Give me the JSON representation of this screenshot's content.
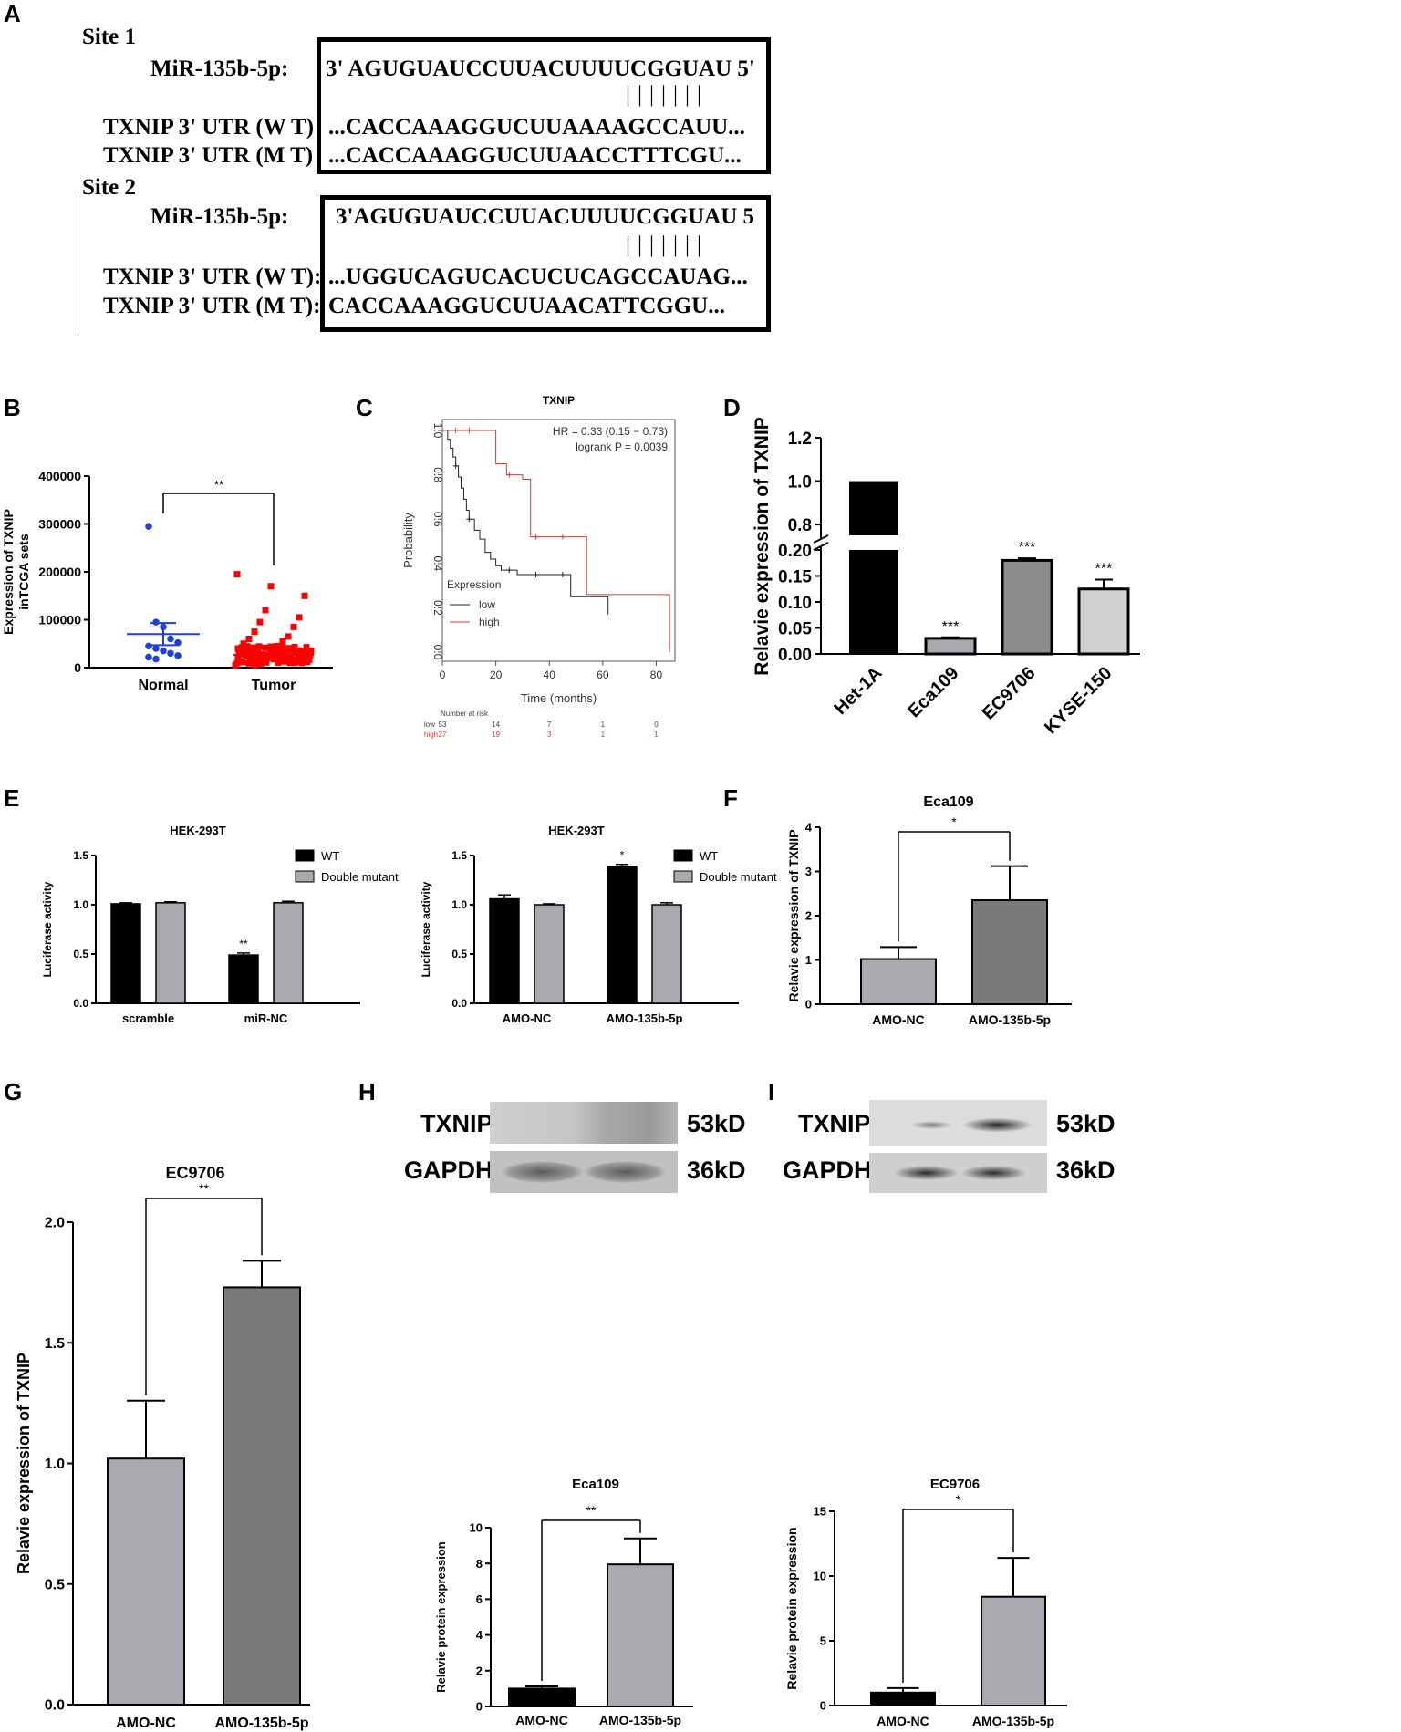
{
  "panel_labels": {
    "A": "A",
    "B": "B",
    "C": "C",
    "D": "D",
    "E": "E",
    "F": "F",
    "G": "G",
    "H": "H",
    "I": "I"
  },
  "panelA": {
    "site1": {
      "title": "Site 1",
      "mir_label": "MiR-135b-5p:",
      "mir_seq": "3' AGUGUAUCCUUACUUUUCGGUAU 5'",
      "pairs": "|||||||",
      "wt_label": "TXNIP 3' UTR (W T)",
      "wt_seq": "...CACCAAAGGUCUUAAAAGCCAUU...",
      "mt_label": "TXNIP 3' UTR (M T)",
      "mt_seq": "...CACCAAAGGUCUUAACCTTTCGU..."
    },
    "site2": {
      "title": "Site 2",
      "mir_label": "MiR-135b-5p:",
      "mir_seq": "3'AGUGUAUCCUUACUUUUCGGUAU 5",
      "pairs": "|||||||",
      "wt_label": "TXNIP 3' UTR (W T):",
      "wt_seq": "...UGGUCAGUCACUCUCAGCCAUAG...",
      "mt_label": "TXNIP 3' UTR (M T):",
      "mt_seq": " CACCAAAGGUCUUAACATTCGGU..."
    }
  },
  "panelH": {
    "protein1": "TXNIP",
    "kd1": "53kD",
    "protein2": "GAPDH",
    "kd2": "36kD"
  },
  "panelI": {
    "protein1": "TXNIP",
    "kd1": "53kD",
    "protein2": "GAPDH",
    "kd2": "36kD"
  },
  "colors": {
    "blue": "#1f3fd6",
    "red": "#ff0000",
    "black": "#000000",
    "dark_gray": "#7a7a7a",
    "mid_gray": "#8c8c8c",
    "light_gray": "#a9a9b0",
    "pale_gray": "#d0d0d0"
  },
  "chart_data": [
    {
      "id": "B",
      "type": "scatter",
      "title": "",
      "ylabel": "Expression of TXNIP inTCGA sets",
      "ylabel_lines": [
        "Expression of TXNIP",
        "inTCGA sets"
      ],
      "categories": [
        "Normal",
        "Tumor"
      ],
      "yticks": [
        "0",
        "100000",
        "200000",
        "300000",
        "400000"
      ],
      "ylim": [
        0,
        400000
      ],
      "significance": "**",
      "series": [
        {
          "name": "Normal",
          "mean": 70000,
          "sem_upper": 93000,
          "sem_lower": 47000,
          "points": [
            295000,
            95000,
            85000,
            60000,
            52000,
            45000,
            40000,
            35000,
            30000,
            25000,
            22000,
            18000
          ]
        },
        {
          "name": "Tumor",
          "mean": 27000,
          "sem_upper": 31000,
          "sem_lower": 23000,
          "points": [
            195000,
            170000,
            150000,
            120000,
            105000,
            95000,
            85000,
            75000,
            65000,
            60000,
            55000,
            50000,
            45000,
            40000,
            35000,
            30000,
            25000,
            20000,
            15000,
            10000,
            5000
          ]
        }
      ]
    },
    {
      "id": "C",
      "type": "line",
      "title": "TXNIP",
      "xlabel": "Time (months)",
      "ylabel": "Probability",
      "xticks": [
        "0",
        "20",
        "40",
        "60",
        "80"
      ],
      "yticks": [
        "0.0",
        "0.2",
        "0.4",
        "0.6",
        "0.8",
        "1.0"
      ],
      "xlim": [
        0,
        87
      ],
      "ylim": [
        0,
        1.02
      ],
      "annotation_lines": [
        "HR = 0.33 (0.15 − 0.73)",
        "logrank P = 0.0039"
      ],
      "legend_title": "Expression",
      "risk_title": "Number at risk",
      "risk_table": [
        {
          "group": "low",
          "values": [
            "53",
            "14",
            "7",
            "1",
            "0"
          ]
        },
        {
          "group": "high",
          "values": [
            "27",
            "19",
            "3",
            "1",
            "1"
          ]
        }
      ],
      "series": [
        {
          "name": "low",
          "x": [
            0,
            2,
            3,
            4,
            5,
            6,
            7,
            8,
            9,
            10,
            12,
            14,
            16,
            18,
            20,
            22,
            28,
            40,
            48,
            60,
            62
          ],
          "y": [
            1.0,
            0.96,
            0.92,
            0.88,
            0.84,
            0.79,
            0.74,
            0.69,
            0.64,
            0.6,
            0.55,
            0.51,
            0.45,
            0.42,
            0.39,
            0.37,
            0.35,
            0.35,
            0.25,
            0.25,
            0.17
          ]
        },
        {
          "name": "high",
          "x": [
            0,
            18,
            20,
            24,
            30,
            33,
            48,
            54,
            60,
            85,
            85
          ],
          "y": [
            1.0,
            1.0,
            0.85,
            0.8,
            0.78,
            0.52,
            0.52,
            0.26,
            0.26,
            0.26,
            0.0
          ]
        }
      ]
    },
    {
      "id": "D",
      "type": "bar",
      "ylabel": "Relavie expression of TXNIP",
      "categories": [
        "Het-1A",
        "Eca109",
        "EC9706",
        "KYSE-150"
      ],
      "values": [
        1.0,
        0.03,
        0.18,
        0.125
      ],
      "errors": [
        0,
        0.002,
        0.004,
        0.018
      ],
      "significance": [
        "",
        "***",
        "***",
        "***"
      ],
      "yticks_upper": [
        "0.8",
        "1.0",
        "1.2"
      ],
      "yticks_lower": [
        "0.00",
        "0.05",
        "0.10",
        "0.15",
        "0.20"
      ],
      "broken_axis": {
        "lower": [
          0,
          0.2
        ],
        "upper": [
          0.75,
          1.2
        ]
      }
    },
    {
      "id": "E1",
      "type": "bar",
      "title": "HEK-293T",
      "ylabel": "Luciferase activity",
      "categories": [
        "scramble",
        "miR-NC"
      ],
      "yticks": [
        "0.0",
        "0.5",
        "1.0",
        "1.5"
      ],
      "ylim": [
        0,
        1.5
      ],
      "legend": [
        "WT",
        "Double mutant"
      ],
      "series": [
        {
          "name": "WT",
          "values": [
            1.01,
            0.49
          ],
          "errors": [
            0.01,
            0.02
          ],
          "significance": [
            "",
            "**"
          ]
        },
        {
          "name": "Double mutant",
          "values": [
            1.02,
            1.02
          ],
          "errors": [
            0.01,
            0.015
          ],
          "significance": [
            "",
            ""
          ]
        }
      ]
    },
    {
      "id": "E2",
      "type": "bar",
      "title": "HEK-293T",
      "ylabel": "Luciferase activity",
      "categories": [
        "AMO-NC",
        "AMO-135b-5p"
      ],
      "yticks": [
        "0.0",
        "0.5",
        "1.0",
        "1.5"
      ],
      "ylim": [
        0,
        1.5
      ],
      "legend": [
        "WT",
        "Double mutant"
      ],
      "series": [
        {
          "name": "WT",
          "values": [
            1.06,
            1.39
          ],
          "errors": [
            0.04,
            0.02
          ],
          "significance": [
            "",
            "*"
          ]
        },
        {
          "name": "Double mutant",
          "values": [
            1.0,
            1.0
          ],
          "errors": [
            0.01,
            0.02
          ],
          "significance": [
            "",
            ""
          ]
        }
      ]
    },
    {
      "id": "F",
      "type": "bar",
      "title": "Eca109",
      "ylabel": "Relavie expression of TXNIP",
      "categories": [
        "AMO-NC",
        "AMO-135b-5p"
      ],
      "values": [
        1.02,
        2.35
      ],
      "errors": [
        0.27,
        0.77
      ],
      "yticks": [
        "0",
        "1",
        "2",
        "3",
        "4"
      ],
      "ylim": [
        0,
        4
      ],
      "significance": "*"
    },
    {
      "id": "G",
      "type": "bar",
      "title": "EC9706",
      "ylabel": "Relavie expression of TXNIP",
      "categories": [
        "AMO-NC",
        "AMO-135b-5p"
      ],
      "values": [
        1.02,
        1.73
      ],
      "errors": [
        0.24,
        0.11
      ],
      "yticks": [
        "0.0",
        "0.5",
        "1.0",
        "1.5",
        "2.0"
      ],
      "ylim": [
        0,
        2.0
      ],
      "significance": "**"
    },
    {
      "id": "H",
      "type": "bar",
      "title": "Eca109",
      "ylabel": "Relavie protein expression",
      "categories": [
        "AMO-NC",
        "AMO-135b-5p"
      ],
      "values": [
        1.0,
        7.95
      ],
      "errors": [
        0.12,
        1.45
      ],
      "yticks": [
        "0",
        "2",
        "4",
        "6",
        "8",
        "10"
      ],
      "ylim": [
        0,
        10
      ],
      "significance": "**"
    },
    {
      "id": "I",
      "type": "bar",
      "title": "EC9706",
      "ylabel": "Relavie protein expression",
      "categories": [
        "AMO-NC",
        "AMO-135b-5p"
      ],
      "values": [
        1.0,
        8.4
      ],
      "errors": [
        0.35,
        3.0
      ],
      "yticks": [
        "0",
        "5",
        "10",
        "15"
      ],
      "ylim": [
        0,
        15
      ],
      "significance": "*"
    }
  ]
}
